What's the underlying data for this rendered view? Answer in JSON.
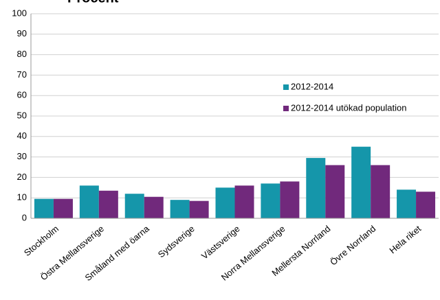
{
  "chart_data": {
    "type": "bar",
    "title": "Procent",
    "categories": [
      "Stockholm",
      "Östra Mellansverige",
      "Småland med öarna",
      "Sydsverige",
      "Västsverige",
      "Norra Mellansverige",
      "Mellersta Norrland",
      "Övre Norrland",
      "Hela riket"
    ],
    "series": [
      {
        "name": "2012-2014",
        "color": "#1596aa",
        "values": [
          9.5,
          16,
          12,
          9,
          15,
          17,
          29.5,
          35,
          14
        ]
      },
      {
        "name": "2012-2014 utökad population",
        "color": "#71297c",
        "values": [
          9.5,
          13.5,
          10.5,
          8.5,
          16,
          18,
          26,
          26,
          13
        ]
      }
    ],
    "ylim": [
      0,
      100
    ],
    "yticks": [
      0,
      10,
      20,
      30,
      40,
      50,
      60,
      70,
      80,
      90,
      100
    ],
    "grid": true
  }
}
